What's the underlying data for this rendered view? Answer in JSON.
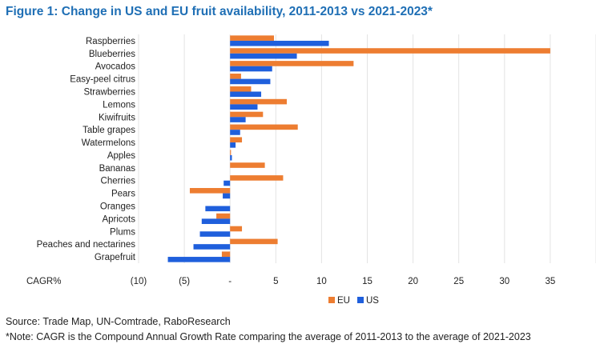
{
  "title": "Figure 1: Change in US and EU fruit availability, 2011-2013 vs 2021-2023*",
  "chart_data": {
    "type": "bar",
    "orientation": "horizontal",
    "title": "Figure 1: Change in US and EU fruit availability, 2011-2013 vs 2021-2023*",
    "xlabel": "CAGR%",
    "ylabel": "",
    "xlim": [
      -10,
      40
    ],
    "x_ticks": [
      -10,
      -5,
      0,
      5,
      10,
      15,
      20,
      25,
      30,
      35
    ],
    "x_tick_labels": [
      "(10)",
      "(5)",
      "-",
      "5",
      "10",
      "15",
      "20",
      "25",
      "30",
      "35"
    ],
    "grid": true,
    "legend_position": "bottom",
    "categories": [
      "Raspberries",
      "Blueberries",
      "Avocados",
      "Easy-peel citrus",
      "Strawberries",
      "Lemons",
      "Kiwifruits",
      "Table grapes",
      "Watermelons",
      "Apples",
      "Bananas",
      "Cherries",
      "Pears",
      "Oranges",
      "Apricots",
      "Plums",
      "Peaches and nectarines",
      "Grapefruit"
    ],
    "series": [
      {
        "name": "EU",
        "color": "#ed7d31",
        "values": [
          4.8,
          35,
          13.5,
          1.2,
          2.3,
          6.2,
          3.6,
          7.4,
          1.3,
          0.1,
          3.8,
          5.8,
          -4.4,
          0,
          -1.5,
          1.3,
          5.2,
          -0.9
        ]
      },
      {
        "name": "US",
        "color": "#1f5fdc",
        "values": [
          10.8,
          7.3,
          4.6,
          4.4,
          3.4,
          3.0,
          1.7,
          1.1,
          0.6,
          0.2,
          0,
          -0.7,
          -0.8,
          -2.7,
          -3.1,
          -3.3,
          -4.0,
          -6.8
        ]
      }
    ]
  },
  "footer": {
    "source": "Source: Trade Map, UN-Comtrade, RaboResearch",
    "note": "*Note: CAGR is the Compound Annual Growth Rate comparing the average of 2011-2013 to the average of 2021-2023"
  }
}
